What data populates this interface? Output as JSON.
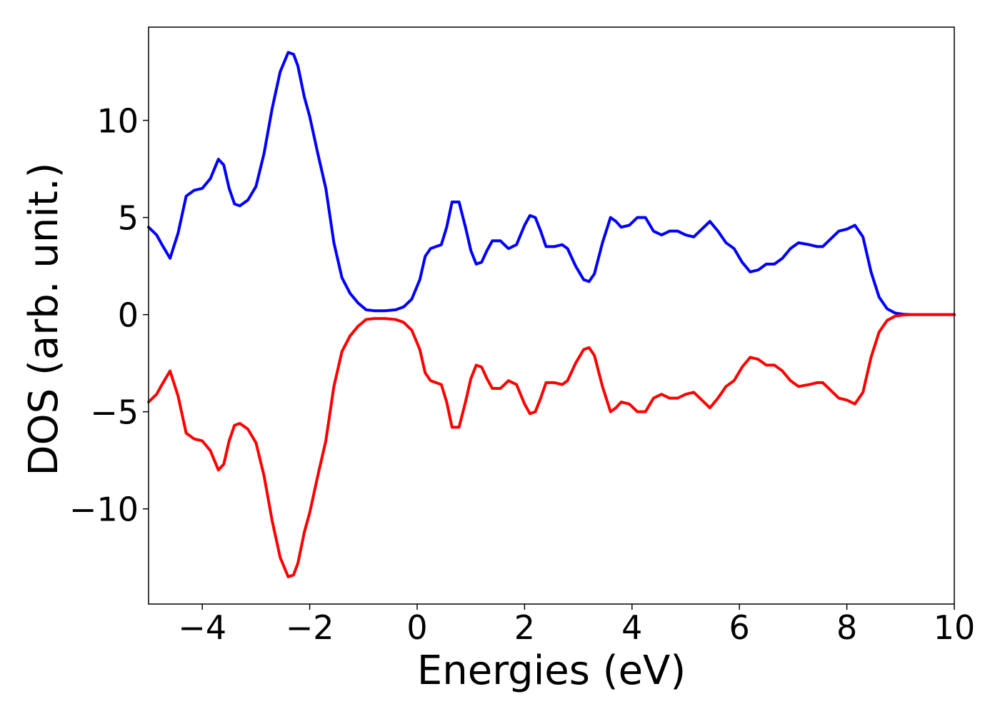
{
  "chart_data": {
    "type": "line",
    "title": "",
    "xlabel": "Energies (eV)",
    "ylabel": "DOS (arb. unit.)",
    "xlim": [
      -5,
      10
    ],
    "ylim": [
      -15,
      15
    ],
    "xticks": [
      -4,
      -2,
      0,
      2,
      4,
      6,
      8,
      10
    ],
    "xtick_labels": [
      "−4",
      "−2",
      "0",
      "2",
      "4",
      "6",
      "8",
      "10"
    ],
    "yticks": [
      -10,
      -5,
      0,
      5,
      10
    ],
    "ytick_labels": [
      "−10",
      "−5",
      "0",
      "5",
      "10"
    ],
    "grid": false,
    "legend": "none",
    "series": [
      {
        "color": "#0000ff",
        "x": [
          -5.0,
          -4.85,
          -4.75,
          -4.6,
          -4.45,
          -4.3,
          -4.15,
          -4.0,
          -3.85,
          -3.7,
          -3.6,
          -3.5,
          -3.4,
          -3.3,
          -3.15,
          -3.0,
          -2.85,
          -2.7,
          -2.55,
          -2.4,
          -2.3,
          -2.22,
          -2.1,
          -2.0,
          -1.85,
          -1.7,
          -1.55,
          -1.4,
          -1.25,
          -1.1,
          -0.95,
          -0.8,
          -0.6,
          -0.4,
          -0.25,
          -0.1,
          0.05,
          0.15,
          0.25,
          0.35,
          0.45,
          0.55,
          0.65,
          0.78,
          0.9,
          1.0,
          1.1,
          1.2,
          1.3,
          1.4,
          1.55,
          1.7,
          1.85,
          2.0,
          2.1,
          2.2,
          2.3,
          2.4,
          2.55,
          2.7,
          2.8,
          2.95,
          3.1,
          3.2,
          3.3,
          3.45,
          3.6,
          3.7,
          3.8,
          3.95,
          4.1,
          4.25,
          4.4,
          4.55,
          4.7,
          4.85,
          5.0,
          5.15,
          5.3,
          5.45,
          5.6,
          5.75,
          5.9,
          6.05,
          6.2,
          6.35,
          6.5,
          6.65,
          6.8,
          6.95,
          7.1,
          7.3,
          7.45,
          7.55,
          7.7,
          7.85,
          8.0,
          8.15,
          8.3,
          8.45,
          8.6,
          8.75,
          8.9,
          9.05,
          9.2,
          9.5,
          10.0
        ],
        "y": [
          4.5,
          4.1,
          3.6,
          2.9,
          4.2,
          6.1,
          6.4,
          6.5,
          7.0,
          8.0,
          7.7,
          6.5,
          5.7,
          5.6,
          5.9,
          6.6,
          8.3,
          10.6,
          12.5,
          13.5,
          13.4,
          12.8,
          11.2,
          10.2,
          8.3,
          6.5,
          3.7,
          1.9,
          1.1,
          0.6,
          0.25,
          0.2,
          0.2,
          0.25,
          0.4,
          0.8,
          1.8,
          3.0,
          3.4,
          3.5,
          3.6,
          4.5,
          5.8,
          5.8,
          4.5,
          3.3,
          2.6,
          2.7,
          3.3,
          3.8,
          3.8,
          3.4,
          3.6,
          4.6,
          5.1,
          5.0,
          4.3,
          3.5,
          3.5,
          3.6,
          3.4,
          2.5,
          1.8,
          1.7,
          2.1,
          3.7,
          5.0,
          4.8,
          4.5,
          4.6,
          5.0,
          5.0,
          4.3,
          4.1,
          4.3,
          4.3,
          4.1,
          4.0,
          4.4,
          4.8,
          4.3,
          3.7,
          3.4,
          2.7,
          2.2,
          2.3,
          2.6,
          2.6,
          2.9,
          3.4,
          3.7,
          3.6,
          3.5,
          3.5,
          3.9,
          4.3,
          4.4,
          4.6,
          4.0,
          2.2,
          0.9,
          0.3,
          0.08,
          0.02,
          0.0,
          0.0,
          0.0
        ]
      },
      {
        "color": "#ff0000",
        "x": [
          -5.0,
          -4.85,
          -4.75,
          -4.6,
          -4.45,
          -4.3,
          -4.15,
          -4.0,
          -3.85,
          -3.7,
          -3.6,
          -3.5,
          -3.4,
          -3.3,
          -3.15,
          -3.0,
          -2.85,
          -2.7,
          -2.55,
          -2.4,
          -2.3,
          -2.22,
          -2.1,
          -2.0,
          -1.85,
          -1.7,
          -1.55,
          -1.4,
          -1.25,
          -1.1,
          -0.95,
          -0.8,
          -0.6,
          -0.4,
          -0.25,
          -0.1,
          0.05,
          0.15,
          0.25,
          0.35,
          0.45,
          0.55,
          0.65,
          0.78,
          0.9,
          1.0,
          1.1,
          1.2,
          1.3,
          1.4,
          1.55,
          1.7,
          1.85,
          2.0,
          2.1,
          2.2,
          2.3,
          2.4,
          2.55,
          2.7,
          2.8,
          2.95,
          3.1,
          3.2,
          3.3,
          3.45,
          3.6,
          3.7,
          3.8,
          3.95,
          4.1,
          4.25,
          4.4,
          4.55,
          4.7,
          4.85,
          5.0,
          5.15,
          5.3,
          5.45,
          5.6,
          5.75,
          5.9,
          6.05,
          6.2,
          6.35,
          6.5,
          6.65,
          6.8,
          6.95,
          7.1,
          7.3,
          7.45,
          7.55,
          7.7,
          7.85,
          8.0,
          8.15,
          8.3,
          8.45,
          8.6,
          8.75,
          8.9,
          9.05,
          9.2,
          9.5,
          10.0
        ],
        "y": [
          -4.5,
          -4.1,
          -3.6,
          -2.9,
          -4.2,
          -6.1,
          -6.4,
          -6.5,
          -7.0,
          -8.0,
          -7.7,
          -6.5,
          -5.7,
          -5.6,
          -5.9,
          -6.6,
          -8.3,
          -10.6,
          -12.5,
          -13.5,
          -13.4,
          -12.8,
          -11.2,
          -10.2,
          -8.3,
          -6.5,
          -3.7,
          -1.9,
          -1.1,
          -0.6,
          -0.25,
          -0.2,
          -0.2,
          -0.25,
          -0.4,
          -0.8,
          -1.8,
          -3.0,
          -3.4,
          -3.5,
          -3.6,
          -4.5,
          -5.8,
          -5.8,
          -4.5,
          -3.3,
          -2.6,
          -2.7,
          -3.3,
          -3.8,
          -3.8,
          -3.4,
          -3.6,
          -4.6,
          -5.1,
          -5.0,
          -4.3,
          -3.5,
          -3.5,
          -3.6,
          -3.4,
          -2.5,
          -1.8,
          -1.7,
          -2.1,
          -3.7,
          -5.0,
          -4.8,
          -4.5,
          -4.6,
          -5.0,
          -5.0,
          -4.3,
          -4.1,
          -4.3,
          -4.3,
          -4.1,
          -4.0,
          -4.4,
          -4.8,
          -4.3,
          -3.7,
          -3.4,
          -2.7,
          -2.2,
          -2.3,
          -2.6,
          -2.6,
          -2.9,
          -3.4,
          -3.7,
          -3.6,
          -3.5,
          -3.5,
          -3.9,
          -4.3,
          -4.4,
          -4.6,
          -4.0,
          -2.2,
          -0.9,
          -0.3,
          -0.08,
          -0.02,
          0.0,
          0.0,
          0.0
        ]
      }
    ]
  }
}
